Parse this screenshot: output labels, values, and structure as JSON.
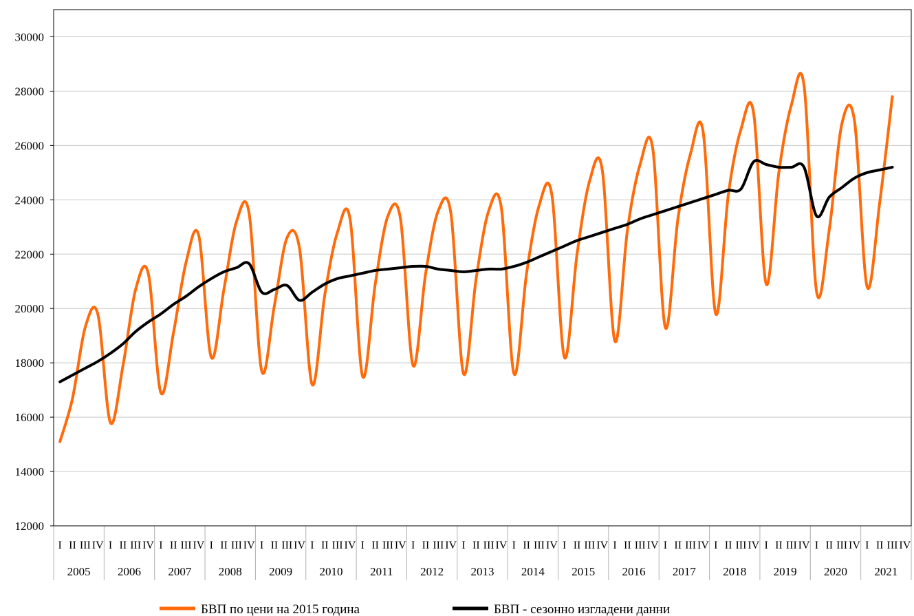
{
  "chart_data": {
    "type": "line",
    "ylim": [
      12000,
      31000
    ],
    "yticks": [
      12000,
      14000,
      16000,
      18000,
      20000,
      22000,
      24000,
      26000,
      28000,
      30000
    ],
    "grid": true,
    "legend_position": "bottom",
    "quarter_labels": [
      "I",
      "II",
      "III",
      "IV"
    ],
    "years": [
      "2005",
      "2006",
      "2007",
      "2008",
      "2009",
      "2010",
      "2011",
      "2012",
      "2013",
      "2014",
      "2015",
      "2016",
      "2017",
      "2018",
      "2019",
      "2020",
      "2021"
    ],
    "series": [
      {
        "name": "БВП  по цени на 2015 година",
        "color": "#ff6a0a",
        "values": [
          15100,
          16700,
          19300,
          19800,
          15800,
          17900,
          20700,
          21300,
          16900,
          19100,
          21700,
          22700,
          18200,
          20700,
          23200,
          23500,
          17700,
          20100,
          22600,
          22200,
          17200,
          20500,
          22800,
          23300,
          17500,
          20900,
          23400,
          23300,
          17900,
          21300,
          23600,
          23500,
          17600,
          21100,
          23600,
          23700,
          17600,
          21300,
          23800,
          24200,
          18200,
          22000,
          24700,
          25100,
          18800,
          22900,
          25300,
          25900,
          19300,
          23300,
          25700,
          26500,
          19800,
          24200,
          26600,
          27200,
          20900,
          25000,
          27500,
          28200,
          20600,
          22900,
          26800,
          26900,
          20800,
          23900,
          27800
        ]
      },
      {
        "name": "БВП - сезонно изгладени данни",
        "color": "#000000",
        "values": [
          17300,
          17550,
          17800,
          18050,
          18350,
          18700,
          19150,
          19500,
          19800,
          20150,
          20450,
          20800,
          21100,
          21350,
          21500,
          21650,
          20600,
          20700,
          20850,
          20300,
          20600,
          20900,
          21100,
          21200,
          21300,
          21400,
          21450,
          21500,
          21550,
          21550,
          21450,
          21400,
          21350,
          21400,
          21450,
          21450,
          21550,
          21700,
          21900,
          22100,
          22300,
          22500,
          22650,
          22800,
          22950,
          23100,
          23300,
          23450,
          23600,
          23750,
          23900,
          24050,
          24200,
          24350,
          24400,
          25400,
          25300,
          25200,
          25200,
          25200,
          23400,
          24100,
          24450,
          24800,
          25000,
          25100,
          25200
        ]
      }
    ]
  }
}
